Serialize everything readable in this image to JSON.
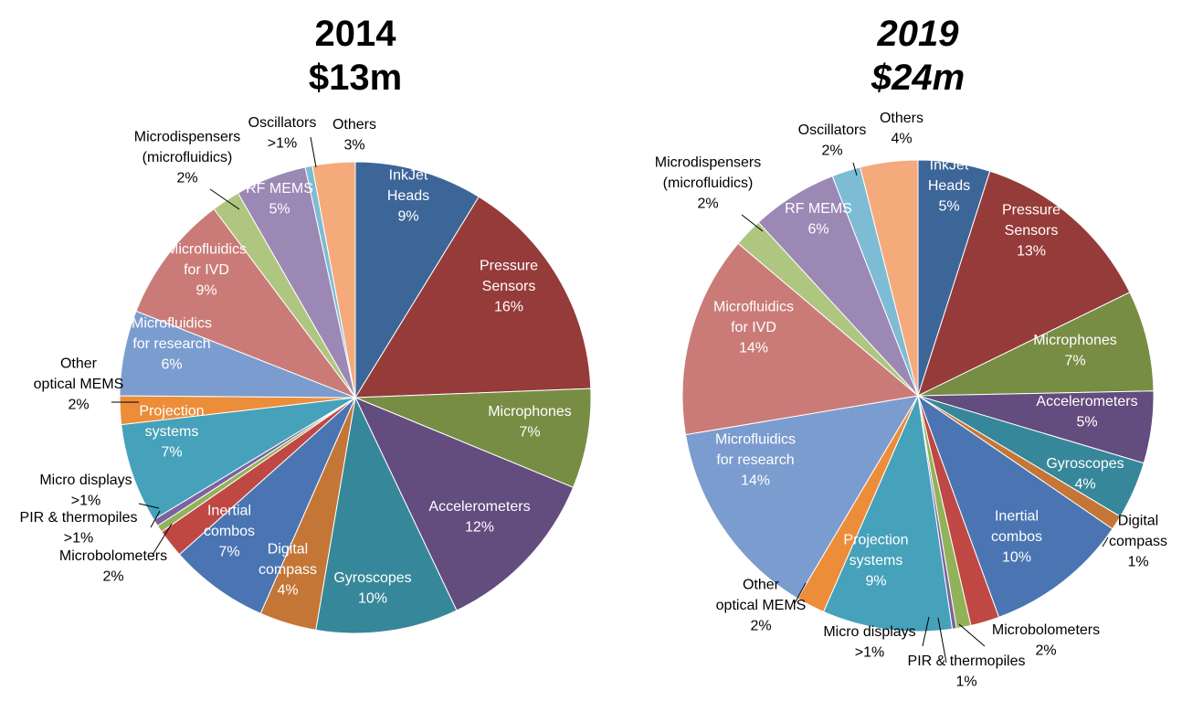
{
  "chart_data": [
    {
      "type": "pie",
      "title_year": "2014",
      "title_value": "$13m",
      "slices": [
        {
          "name": "InkJet Heads",
          "pct_label": "9%",
          "value": 9,
          "color": "#3D6698"
        },
        {
          "name": "Pressure Sensors",
          "pct_label": "16%",
          "value": 16,
          "color": "#953B39"
        },
        {
          "name": "Microphones",
          "pct_label": "7%",
          "value": 7,
          "color": "#778D44"
        },
        {
          "name": "Accelerometers",
          "pct_label": "12%",
          "value": 12,
          "color": "#634C7E"
        },
        {
          "name": "Gyroscopes",
          "pct_label": "10%",
          "value": 10,
          "color": "#37879A"
        },
        {
          "name": "Digital compass",
          "pct_label": "4%",
          "value": 4,
          "color": "#C47636"
        },
        {
          "name": "Inertial combos",
          "pct_label": "7%",
          "value": 7,
          "color": "#4A75B2"
        },
        {
          "name": "Microbolometers",
          "pct_label": "2%",
          "value": 2,
          "color": "#BF4844"
        },
        {
          "name": "PIR & thermopiles",
          "pct_label": ">1%",
          "value": 0.5,
          "color": "#92B25A"
        },
        {
          "name": "Micro displays",
          "pct_label": ">1%",
          "value": 0.5,
          "color": "#7A63A0"
        },
        {
          "name": "Projection systems",
          "pct_label": "7%",
          "value": 7,
          "color": "#46A1BA"
        },
        {
          "name": "Other optical MEMS",
          "pct_label": "2%",
          "value": 2,
          "color": "#EC8D3A"
        },
        {
          "name": "Microfluidics for research",
          "pct_label": "6%",
          "value": 6,
          "color": "#7B9CCE"
        },
        {
          "name": "Microfluidics for IVD",
          "pct_label": "9%",
          "value": 9,
          "color": "#CA7B78"
        },
        {
          "name": "Microdispensers (microfluidics)",
          "pct_label": "2%",
          "value": 2,
          "color": "#AEC67F"
        },
        {
          "name": "RF MEMS",
          "pct_label": "5%",
          "value": 5,
          "color": "#9C88B5"
        },
        {
          "name": "Oscillators",
          "pct_label": ">1%",
          "value": 0.5,
          "color": "#7DBCD4"
        },
        {
          "name": "Others",
          "pct_label": "3%",
          "value": 3,
          "color": "#F5AA7C"
        }
      ],
      "labels": [
        {
          "lines": [
            "InkJet",
            "Heads",
            "9%"
          ],
          "inside": true
        },
        {
          "lines": [
            "Pressure",
            "Sensors",
            "16%"
          ],
          "inside": true
        },
        {
          "lines": [
            "Microphones",
            "7%"
          ],
          "inside": true
        },
        {
          "lines": [
            "Accelerometers",
            "12%"
          ],
          "inside": true
        },
        {
          "lines": [
            "Gyroscopes",
            "10%"
          ],
          "inside": true
        },
        {
          "lines": [
            "Digital",
            "compass",
            "4%"
          ],
          "inside": true
        },
        {
          "lines": [
            "Inertial",
            "combos",
            "7%"
          ],
          "inside": true
        },
        {
          "lines": [
            "Microbolometers",
            "2%"
          ],
          "inside": false
        },
        {
          "lines": [
            "PIR & thermopiles",
            ">1%"
          ],
          "inside": false
        },
        {
          "lines": [
            "Micro displays",
            ">1%"
          ],
          "inside": false
        },
        {
          "lines": [
            "Projection",
            "systems",
            "7%"
          ],
          "inside": true
        },
        {
          "lines": [
            "Other",
            "optical MEMS",
            "2%"
          ],
          "inside": false
        },
        {
          "lines": [
            "Microfluidics",
            "for research",
            "6%"
          ],
          "inside": true
        },
        {
          "lines": [
            "Microfluidics",
            "for IVD",
            "9%"
          ],
          "inside": true
        },
        {
          "lines": [
            "Microdispensers",
            "(microfluidics)",
            "2%"
          ],
          "inside": false
        },
        {
          "lines": [
            "RF MEMS",
            "5%"
          ],
          "inside": true
        },
        {
          "lines": [
            "Oscillators",
            ">1%"
          ],
          "inside": false
        },
        {
          "lines": [
            "Others",
            "3%"
          ],
          "inside": false
        }
      ]
    },
    {
      "type": "pie",
      "title_year": "2019",
      "title_value": "$24m",
      "slices": [
        {
          "name": "InkJet Heads",
          "pct_label": "5%",
          "value": 5,
          "color": "#3D6698"
        },
        {
          "name": "Pressure Sensors",
          "pct_label": "13%",
          "value": 13,
          "color": "#953B39"
        },
        {
          "name": "Microphones",
          "pct_label": "7%",
          "value": 7,
          "color": "#778D44"
        },
        {
          "name": "Accelerometers",
          "pct_label": "5%",
          "value": 5,
          "color": "#634C7E"
        },
        {
          "name": "Gyroscopes",
          "pct_label": "4%",
          "value": 4,
          "color": "#37879A"
        },
        {
          "name": "Digital compass",
          "pct_label": "1%",
          "value": 1,
          "color": "#C47636"
        },
        {
          "name": "Inertial combos",
          "pct_label": "10%",
          "value": 10,
          "color": "#4A75B2"
        },
        {
          "name": "Microbolometers",
          "pct_label": "2%",
          "value": 2,
          "color": "#BF4844"
        },
        {
          "name": "PIR & thermopiles",
          "pct_label": "1%",
          "value": 1,
          "color": "#92B25A"
        },
        {
          "name": "Micro displays",
          "pct_label": ">1%",
          "value": 0.3,
          "color": "#7A63A0"
        },
        {
          "name": "Projection systems",
          "pct_label": "9%",
          "value": 9,
          "color": "#46A1BA"
        },
        {
          "name": "Other optical MEMS",
          "pct_label": "2%",
          "value": 2,
          "color": "#EC8D3A"
        },
        {
          "name": "Microfluidics for research",
          "pct_label": "14%",
          "value": 14,
          "color": "#7B9CCE"
        },
        {
          "name": "Microfluidics for IVD",
          "pct_label": "14%",
          "value": 14,
          "color": "#CA7B78"
        },
        {
          "name": "Microdispensers (microfluidics)",
          "pct_label": "2%",
          "value": 2,
          "color": "#AEC67F"
        },
        {
          "name": "RF MEMS",
          "pct_label": "6%",
          "value": 6,
          "color": "#9C88B5"
        },
        {
          "name": "Oscillators",
          "pct_label": "2%",
          "value": 2,
          "color": "#7DBCD4"
        },
        {
          "name": "Others",
          "pct_label": "4%",
          "value": 4,
          "color": "#F5AA7C"
        }
      ],
      "labels": [
        {
          "lines": [
            "InkJet",
            "Heads",
            "5%"
          ],
          "inside": true
        },
        {
          "lines": [
            "Pressure",
            "Sensors",
            "13%"
          ],
          "inside": true
        },
        {
          "lines": [
            "Microphones",
            "7%"
          ],
          "inside": true
        },
        {
          "lines": [
            "Accelerometers",
            "5%"
          ],
          "inside": true
        },
        {
          "lines": [
            "Gyroscopes",
            "4%"
          ],
          "inside": true
        },
        {
          "lines": [
            "Digital",
            "compass",
            "1%"
          ],
          "inside": false
        },
        {
          "lines": [
            "Inertial",
            "combos",
            "10%"
          ],
          "inside": true
        },
        {
          "lines": [
            "Microbolometers",
            "2%"
          ],
          "inside": false
        },
        {
          "lines": [
            "PIR & thermopiles",
            "1%"
          ],
          "inside": false
        },
        {
          "lines": [
            "Micro displays",
            ">1%"
          ],
          "inside": false
        },
        {
          "lines": [
            "Projection",
            "systems",
            "9%"
          ],
          "inside": true
        },
        {
          "lines": [
            "Other",
            "optical MEMS",
            "2%"
          ],
          "inside": false
        },
        {
          "lines": [
            "Microfluidics",
            "for research",
            "14%"
          ],
          "inside": true
        },
        {
          "lines": [
            "Microfluidics",
            "for IVD",
            "14%"
          ],
          "inside": true
        },
        {
          "lines": [
            "Microdispensers",
            "(microfluidics)",
            "2%"
          ],
          "inside": false
        },
        {
          "lines": [
            "RF MEMS",
            "6%"
          ],
          "inside": true
        },
        {
          "lines": [
            "Oscillators",
            "2%"
          ],
          "inside": false
        },
        {
          "lines": [
            "Others",
            "4%"
          ],
          "inside": false
        }
      ]
    }
  ]
}
